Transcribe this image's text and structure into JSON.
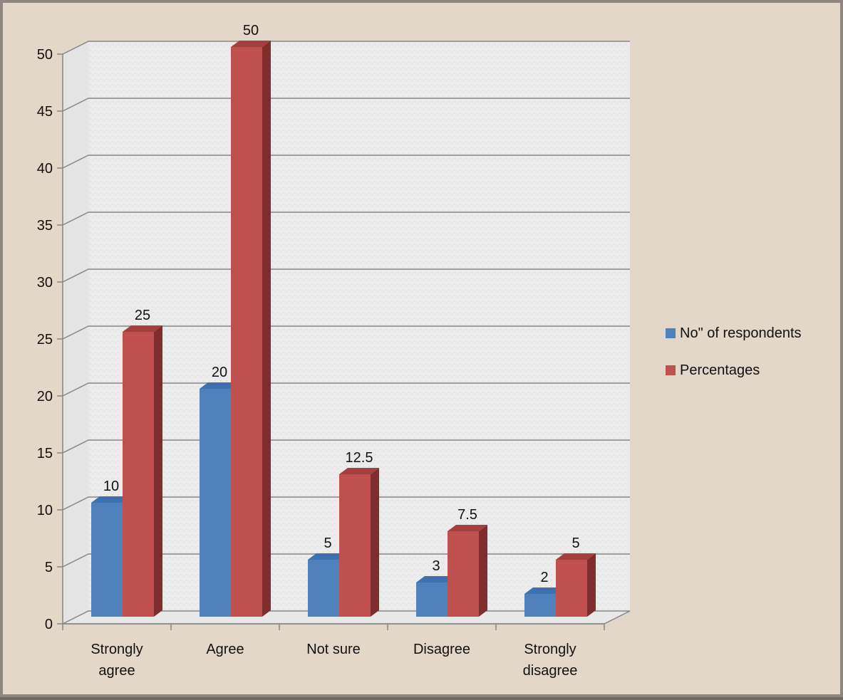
{
  "chart_data": {
    "type": "bar",
    "title": "",
    "xlabel": "",
    "ylabel": "",
    "categories": [
      [
        "Strongly",
        "agree"
      ],
      [
        "Agree"
      ],
      [
        "Not sure"
      ],
      [
        "Disagree"
      ],
      [
        "Strongly",
        "disagree"
      ]
    ],
    "series": [
      {
        "name": "No\" of respondents",
        "values": [
          10,
          20,
          5,
          3,
          2
        ],
        "labels": [
          "10",
          "20",
          "5",
          "3",
          "2"
        ]
      },
      {
        "name": "Percentages",
        "values": [
          25,
          50,
          12.5,
          7.5,
          5
        ],
        "labels": [
          "25",
          "50",
          "12.5",
          "7.5",
          "5"
        ]
      }
    ],
    "ylim": [
      0,
      50
    ],
    "yticks": [
      "0",
      "5",
      "10",
      "15",
      "20",
      "25",
      "30",
      "35",
      "40",
      "45",
      "50"
    ],
    "grid": true,
    "legend_position": "right",
    "three_d": true,
    "colors": {
      "series": [
        "#4f81bd",
        "#c0504d"
      ],
      "series_side": [
        "#2f5686",
        "#7f2d2c"
      ],
      "series_top": [
        "#3e6fae",
        "#a33f3c"
      ],
      "plot_area": "#ebebeb",
      "background": "#e2d7c8",
      "gridline": "#868686"
    }
  }
}
